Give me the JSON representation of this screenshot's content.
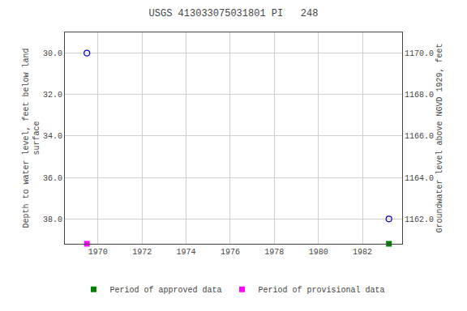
{
  "chart_data": {
    "type": "scatter",
    "title": "USGS 413033075031801 PI   248",
    "ylabel": "Depth to water level, feet below land\nsurface",
    "y2label": "Groundwater level above NGVD 1929, feet",
    "x": [
      1969.5,
      1983.2
    ],
    "series": [
      {
        "values": [
          30.0,
          38.0
        ],
        "color": "#0000cc",
        "marker": "circle-open"
      }
    ],
    "periods": [
      {
        "name": "Period of approved data",
        "color": "#008000",
        "x": 1983.2,
        "marker": "square"
      },
      {
        "name": "Period of provisional data",
        "color": "#ff00ff",
        "x": 1969.5,
        "marker": "square"
      }
    ],
    "xlim": [
      1968.5,
      1983.8
    ],
    "xticks": [
      1970,
      1972,
      1974,
      1976,
      1978,
      1980,
      1982
    ],
    "ylim": [
      39.2,
      29.0
    ],
    "yticks": [
      {
        "value": 30.0,
        "label": "30.0"
      },
      {
        "value": 32.0,
        "label": "32.0"
      },
      {
        "value": 34.0,
        "label": "34.0"
      },
      {
        "value": 36.0,
        "label": "36.0"
      },
      {
        "value": 38.0,
        "label": "38.0"
      }
    ],
    "y2lim": [
      1160.8,
      1171.0
    ],
    "y2ticks": [
      {
        "value": 1162.0,
        "label": "1162.0"
      },
      {
        "value": 1164.0,
        "label": "1164.0"
      },
      {
        "value": 1166.0,
        "label": "1166.0"
      },
      {
        "value": 1168.0,
        "label": "1168.0"
      },
      {
        "value": 1170.0,
        "label": "1170.0"
      }
    ],
    "grid": true,
    "legend": "bottom"
  }
}
